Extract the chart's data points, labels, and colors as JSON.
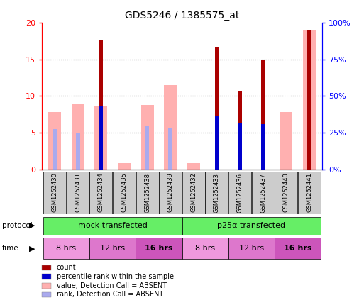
{
  "title": "GDS5246 / 1385575_at",
  "samples": [
    "GSM1252430",
    "GSM1252431",
    "GSM1252434",
    "GSM1252435",
    "GSM1252438",
    "GSM1252439",
    "GSM1252432",
    "GSM1252433",
    "GSM1252436",
    "GSM1252437",
    "GSM1252440",
    "GSM1252441"
  ],
  "count_values": [
    0.0,
    0.0,
    17.7,
    0.0,
    0.0,
    0.0,
    0.0,
    16.7,
    10.7,
    15.0,
    0.0,
    19.0
  ],
  "pink_values": [
    7.8,
    9.0,
    8.7,
    0.9,
    8.8,
    11.5,
    0.9,
    0.0,
    0.0,
    0.0,
    7.8,
    19.0
  ],
  "blue_rank_values": [
    0.0,
    0.0,
    8.7,
    0.0,
    0.0,
    0.0,
    0.0,
    7.3,
    6.3,
    6.2,
    0.0,
    0.0
  ],
  "light_blue_rank": [
    5.5,
    5.0,
    0.0,
    0.0,
    5.9,
    5.6,
    0.0,
    0.0,
    0.0,
    0.0,
    0.0,
    6.8
  ],
  "ylim": [
    0,
    20
  ],
  "y2lim": [
    0,
    100
  ],
  "yticks": [
    0,
    5,
    10,
    15,
    20
  ],
  "y2ticks": [
    0,
    25,
    50,
    75,
    100
  ],
  "y2ticklabels": [
    "0%",
    "25%",
    "50%",
    "75%",
    "100%"
  ],
  "color_count": "#AA0000",
  "color_pink": "#FFB0B0",
  "color_blue": "#0000CC",
  "color_lightblue": "#AAAAEE",
  "color_green": "#66EE66",
  "color_magenta1": "#EE99DD",
  "color_magenta2": "#DD77CC",
  "color_magenta3": "#CC55BB",
  "color_sample_bg": "#CCCCCC",
  "protocol_groups": [
    {
      "label": "mock transfected",
      "start": 0,
      "end": 6
    },
    {
      "label": "p25α transfected",
      "start": 6,
      "end": 12
    }
  ],
  "time_groups": [
    {
      "label": "8 hrs",
      "start": 0,
      "end": 2,
      "bold": false
    },
    {
      "label": "12 hrs",
      "start": 2,
      "end": 4,
      "bold": false
    },
    {
      "label": "16 hrs",
      "start": 4,
      "end": 6,
      "bold": true
    },
    {
      "label": "8 hrs",
      "start": 6,
      "end": 8,
      "bold": false
    },
    {
      "label": "12 hrs",
      "start": 8,
      "end": 10,
      "bold": false
    },
    {
      "label": "16 hrs",
      "start": 10,
      "end": 12,
      "bold": true
    }
  ],
  "legend_items": [
    {
      "color": "#AA0000",
      "label": "count"
    },
    {
      "color": "#0000CC",
      "label": "percentile rank within the sample"
    },
    {
      "color": "#FFB0B0",
      "label": "value, Detection Call = ABSENT"
    },
    {
      "color": "#AAAAEE",
      "label": "rank, Detection Call = ABSENT"
    }
  ]
}
